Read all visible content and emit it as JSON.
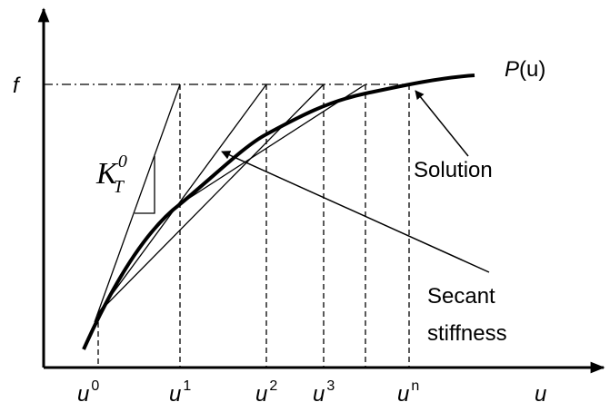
{
  "labels": {
    "f": "f",
    "p": {
      "base": "P",
      "arg": "(u)"
    },
    "solution": "Solution",
    "secant": [
      "Secant",
      "stiffness"
    ],
    "k": {
      "base": "K",
      "sub": "T",
      "sup": "0"
    },
    "ticks": [
      {
        "base": "u",
        "sup": "0"
      },
      {
        "base": "u",
        "sup": "1"
      },
      {
        "base": "u",
        "sup": "2"
      },
      {
        "base": "u",
        "sup": "3"
      },
      {
        "base": "u",
        "sup": "n"
      }
    ],
    "u": "u"
  }
}
